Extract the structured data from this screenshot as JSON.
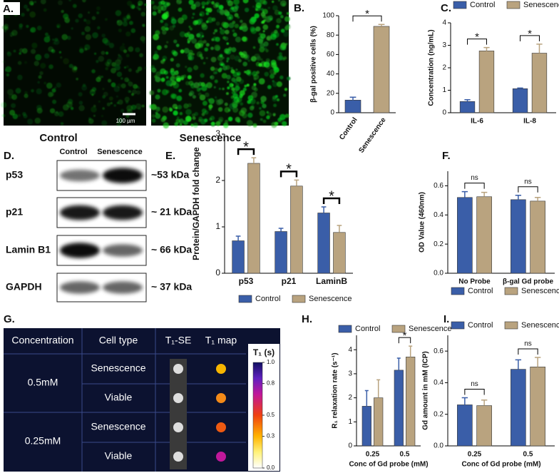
{
  "panel_a": {
    "label": "A.",
    "scale_bar": "100 µm",
    "captions": [
      "Control",
      "Senescence"
    ]
  },
  "panel_d": {
    "label": "D.",
    "columns": [
      "Control",
      "Senescence"
    ],
    "rows": [
      {
        "protein": "p53",
        "size": "~53 kDa"
      },
      {
        "protein": "p21",
        "size": "~ 21 kDa"
      },
      {
        "protein": "Lamin B1",
        "size": "~ 66 kDa"
      },
      {
        "protein": "GAPDH",
        "size": "~ 37 kDa"
      }
    ]
  },
  "panel_g": {
    "label": "G.",
    "headers": [
      "Concentration",
      "Cell type",
      "T₁-SE",
      "T₁ map"
    ],
    "groups": [
      {
        "concentration": "0.5mM",
        "cell_types": [
          "Senescence",
          "Viable"
        ]
      },
      {
        "concentration": "0.25mM",
        "cell_types": [
          "Senescence",
          "Viable"
        ]
      }
    ],
    "colorbar": {
      "title": "T₁ (s)",
      "lim": [
        0,
        1
      ],
      "ticks": [
        {
          "value": 0,
          "label": "0.0"
        },
        0.3,
        0.5,
        0.8,
        {
          "value": 1,
          "label": "1.0"
        }
      ]
    }
  },
  "chart_data": [
    {
      "type": "bar",
      "label": "B.",
      "ylabel": "β-gal positive cells (%)",
      "categories": [
        "Control",
        "Senescence"
      ],
      "values": [
        13,
        89
      ],
      "errors": [
        3,
        2
      ],
      "colors": [
        "#3a5ea8",
        "#b9a37f"
      ],
      "significance": "*",
      "ylim": [
        0,
        100
      ],
      "yticks": [
        0,
        20,
        40,
        60,
        80,
        100
      ]
    },
    {
      "type": "bar",
      "label": "C.",
      "ylabel": "Concentration (ng/mL)",
      "categories": [
        "IL-6",
        "IL-8"
      ],
      "series": [
        {
          "name": "Control",
          "color": "#3a5ea8",
          "values": [
            0.5,
            1.07
          ],
          "errors": [
            0.08,
            0.03
          ]
        },
        {
          "name": "Senescence",
          "color": "#b9a37f",
          "values": [
            2.75,
            2.65
          ],
          "errors": [
            0.15,
            0.4
          ]
        }
      ],
      "significance": [
        "*",
        "*"
      ],
      "legend": "top",
      "ylim": [
        0,
        4
      ],
      "yticks": [
        0,
        1,
        2,
        3,
        4
      ]
    },
    {
      "type": "bar",
      "label": "E.",
      "ylabel": "Protein/GAPDH fold change",
      "categories": [
        "p53",
        "p21",
        "LaminB"
      ],
      "series": [
        {
          "name": "Control",
          "color": "#3a5ea8",
          "values": [
            0.7,
            0.9,
            1.3
          ],
          "errors": [
            0.1,
            0.07,
            0.13
          ]
        },
        {
          "name": "Senescence",
          "color": "#b9a37f",
          "values": [
            2.37,
            1.88,
            0.88
          ],
          "errors": [
            0.12,
            0.13,
            0.15
          ]
        }
      ],
      "significance": [
        "*",
        "*",
        "*"
      ],
      "legend": "bottom",
      "ylim": [
        0,
        3
      ],
      "yticks": [
        0,
        1,
        2,
        3
      ]
    },
    {
      "type": "bar",
      "label": "F.",
      "ylabel": "OD Value (460nm)",
      "categories": [
        "No Probe",
        "β-gal Gd probe"
      ],
      "series": [
        {
          "name": "Control",
          "color": "#3a5ea8",
          "values": [
            0.52,
            0.505
          ],
          "errors": [
            0.04,
            0.03
          ]
        },
        {
          "name": "Senescence",
          "color": "#b9a37f",
          "values": [
            0.525,
            0.495
          ],
          "errors": [
            0.03,
            0.025
          ]
        }
      ],
      "significance": [
        "ns",
        "ns"
      ],
      "legend": "bottom",
      "ylim": [
        0,
        0.7
      ],
      "yticks": [
        {
          "value": 0,
          "label": "0.0"
        },
        0.2,
        0.4,
        0.6
      ]
    },
    {
      "type": "bar",
      "label": "H.",
      "ylabel": "R₁ relaxation rate (s⁻¹)",
      "xlabel": "Conc of Gd probe (mM)",
      "categories": [
        "0.25",
        "0.5"
      ],
      "series": [
        {
          "name": "Control",
          "color": "#3a5ea8",
          "values": [
            1.65,
            3.15
          ],
          "errors": [
            0.65,
            0.5
          ]
        },
        {
          "name": "Senescence",
          "color": "#b9a37f",
          "values": [
            2.0,
            3.7
          ],
          "errors": [
            0.75,
            0.45
          ]
        }
      ],
      "significance": [
        null,
        "*"
      ],
      "legend": "top",
      "ylim": [
        0,
        4.6
      ],
      "yticks": [
        0,
        1,
        2,
        3,
        4
      ]
    },
    {
      "type": "bar",
      "label": "I.",
      "ylabel": "Gd amount in mM (ICP)",
      "xlabel": "Conc of Gd probe (mM)",
      "categories": [
        "0.25",
        "0.5"
      ],
      "series": [
        {
          "name": "Control",
          "color": "#3a5ea8",
          "values": [
            0.26,
            0.485
          ],
          "errors": [
            0.045,
            0.06
          ]
        },
        {
          "name": "Senescence",
          "color": "#b9a37f",
          "values": [
            0.255,
            0.5
          ],
          "errors": [
            0.035,
            0.06
          ]
        }
      ],
      "significance": [
        "ns",
        "ns"
      ],
      "legend": "top",
      "ylim": [
        0,
        0.7
      ],
      "yticks": [
        {
          "value": 0,
          "label": "0.0"
        },
        0.2,
        0.4,
        0.6
      ]
    }
  ]
}
